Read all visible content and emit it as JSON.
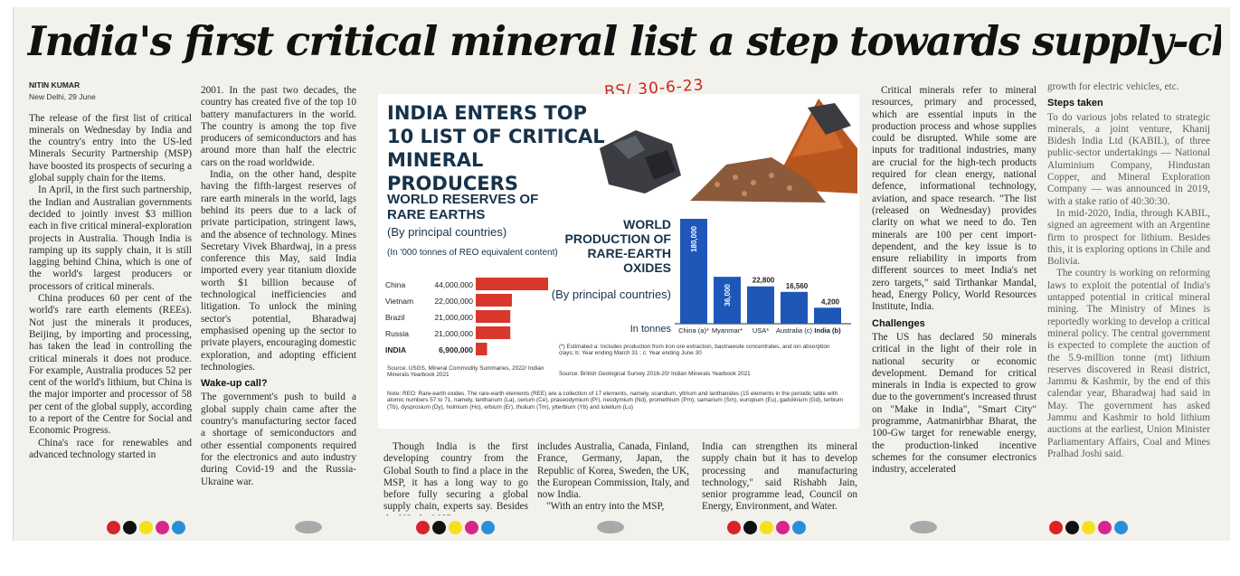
{
  "headline": "India's first critical mineral list a step towards supply-chain security: Experts",
  "byline": "NITIN KUMAR",
  "dateline": "New Delhi, 29 June",
  "handwritten_note": "BS/ 30-6-23",
  "col1": {
    "paragraphs": [
      "The release of the first list of critical minerals on Wednesday by India and the country's entry into the US-led Minerals Security Partnership (MSP) have boosted its prospects of securing a global supply chain for the items.",
      "In April, in the first such partnership, the Indian and Australian governments decided to jointly invest $3 million each in five critical mineral-exploration projects in Australia. Though India is ramping up its supply chain, it is still lagging behind China, which is one of the world's largest producers or processors of critical minerals.",
      "China produces 60 per cent of the world's rare earth elements (REEs). Not just the minerals it produces, Beijing, by importing and processing, has taken the lead in controlling the critical minerals it does not produce. For example, Australia produces 52 per cent of the world's lithium, but China is the major importer and processor of 58 per cent of the global supply, according to a report of the Centre for Social and Economic Progress.",
      "China's race for renewables and advanced technology started in"
    ]
  },
  "col2": {
    "paragraphs": [
      "2001. In the past two decades, the country has created five of the top 10 battery manufacturers in the world. The country is among the top five producers of semiconductors and has around more than half the electric cars on the road worldwide.",
      "India, on the other hand, despite having the fifth-largest reserves of rare earth minerals in the world, lags behind its peers due to a lack of private participation, stringent laws, and the absence of technology. Mines Secretary Vivek Bhardwaj, in a press conference this May, said India imported every year titanium dioxide worth $1 billion because of technological inefficiencies and litigation. To unlock the mining sector's potential, Bharadwaj emphasised opening up the sector to private players, encouraging domestic exploration, and adopting efficient technologies."
    ],
    "subhead": "Wake-up call?",
    "paragraphs2": [
      "The government's push to build a global supply chain came after the country's manufacturing sector faced a shortage of semiconductors and other essential components required for the electronics and auto industry during Covid-19 and the Russia-Ukraine war."
    ]
  },
  "infographic": {
    "title": "INDIA ENTERS TOP 10 LIST OF CRITICAL MINERAL PRODUCERS",
    "reserves_title": "WORLD RESERVES OF RARE EARTHS",
    "reserves_subtitle": "(By principal countries)",
    "reserves_units": "(In '000 tonnes of REO equivalent content)",
    "production_title": "WORLD PRODUCTION OF RARE-EARTH OXIDES",
    "production_subtitle": "(By principal countries)",
    "production_units": "In tonnes",
    "footnotes": "(*) Estimated a: Includes production from iron ore extraction, bastnaesite concentrates, and ion absorption clays; b: Year ending March 31 ; c: Year ending June 30",
    "source_left": "Source: USGS, Mineral Commodity Summaries, 2022/ Indian Minerals Yearbook 2021",
    "source_right": "Source: British Geological Survey 2016-20/ Indian Minerals Yearbook 2021",
    "note": "Note: REO: Rare-earth oxides. The rare-earth elements (REE) are a collection of 17 elements, namely, scandium, yttrium and lanthanides (15 elements in the periodic table with atomic numbers 57 to 71, namely, lanthanum (La), cerium (Ce), praseodymium (Pr), neodymium (Nd), promethium (Pm), samarium (Sm), europium (Eu), gadolinium (Gd), terbium (Tb), dysprosium (Dy), holmium (Ho), erbium (Er), thulium (Tm), ytterbium (Yb) and lutetium (Lu)",
    "bar_color_reserves": "#d8372c",
    "bar_color_production": "#1f57b8"
  },
  "chart_data": [
    {
      "type": "bar",
      "orientation": "horizontal",
      "title": "WORLD RESERVES OF RARE EARTHS",
      "categories": [
        "China",
        "Vietnam",
        "Brazil",
        "Russia",
        "INDIA"
      ],
      "values": [
        44000000,
        22000000,
        21000000,
        21000000,
        6900000
      ],
      "value_labels": [
        "44,000,000",
        "22,000,000",
        "21,000,000",
        "21,000,000",
        "6,900,000"
      ]
    },
    {
      "type": "bar",
      "orientation": "vertical",
      "title": "WORLD PRODUCTION OF RARE-EARTH OXIDES",
      "categories": [
        "China (a)*",
        "Myanmar*",
        "USA*",
        "Australia (c)",
        "India (b)"
      ],
      "values": [
        180000,
        36000,
        22800,
        16560,
        4200
      ],
      "value_labels": [
        "180,000",
        "36,000",
        "22,800",
        "16,560",
        "4,200"
      ]
    }
  ],
  "col3": {
    "paragraphs": [
      "Though India is the first developing country from the Global South to find a place in the MSP, it has a long way to go before fully securing a global supply chain, experts say. Besides the US, the MSP"
    ]
  },
  "col4": {
    "paragraphs": [
      "includes Australia, Canada, Finland, France, Germany, Japan, the Republic of Korea, Sweden, the UK, the European Commission, Italy, and now India.",
      "\"With an entry into the MSP,"
    ]
  },
  "col5": {
    "paragraphs": [
      "India can strengthen its mineral supply chain but it has to develop processing and manufacturing technology,\" said Rishabh Jain, senior programme lead, Council on Energy, Environment, and Water."
    ]
  },
  "col6": {
    "paragraphs": [
      "Critical minerals refer to mineral resources, primary and processed, which are essential inputs in the production process and whose supplies could be disrupted. While some are inputs for traditional industries, many are crucial for the high-tech products required for clean energy, national defence, informational technology, aviation, and space research. \"The list (released on Wednesday) provides clarity on what we need to do. Ten minerals are 100 per cent import-dependent, and the key issue is to ensure reliability in imports from different sources to meet India's net zero targets,\" said Tirthankar Mandal, head, Energy Policy, World Resources Institute, India."
    ],
    "subhead": "Challenges",
    "paragraphs2": [
      "The US has declared 50 minerals critical in the light of their role in national security or economic development. Demand for critical minerals in India is expected to grow due to the government's increased thrust on \"Make in India\", \"Smart City\" programme, Aatmanirbhar Bharat, the 100-Gw target for renewable energy, the production-linked incentive schemes for the consumer electronics industry, accelerated"
    ]
  },
  "col7": {
    "paragraphs": [
      "growth for electric vehicles, etc."
    ],
    "subhead": "Steps taken",
    "paragraphs2": [
      "To do various jobs related to strategic minerals, a joint venture, Khanij Bidesh India Ltd (KABIL), of three public-sector undertakings — National Aluminium Company, Hindustan Copper, and Mineral Exploration Company — was announced in 2019, with a stake ratio of 40:30:30.",
      "In mid-2020, India, through KABIL, signed an agreement with an Argentine firm to prospect for lithium. Besides this, it is exploring options in Chile and Bolivia.",
      "The country is working on reforming laws to exploit the potential of India's untapped potential in critical mineral mining. The Ministry of Mines is reportedly working to develop a critical mineral policy. The central government is expected to complete the auction of the 5.9-million tonne (mt) lithium reserves discovered in Reasi district, Jammu & Kashmir, by the end of this calendar year, Bharadwaj had said in May. The government has asked Jammu and Kashmir to hold lithium auctions at the earliest, Union Minister Parliamentary Affairs, Coal and Mines Pralhad Joshi said."
    ]
  },
  "registration_colors": [
    "#d8232a",
    "#111111",
    "#f4e11c",
    "#d6278a",
    "#2a8fd8"
  ]
}
